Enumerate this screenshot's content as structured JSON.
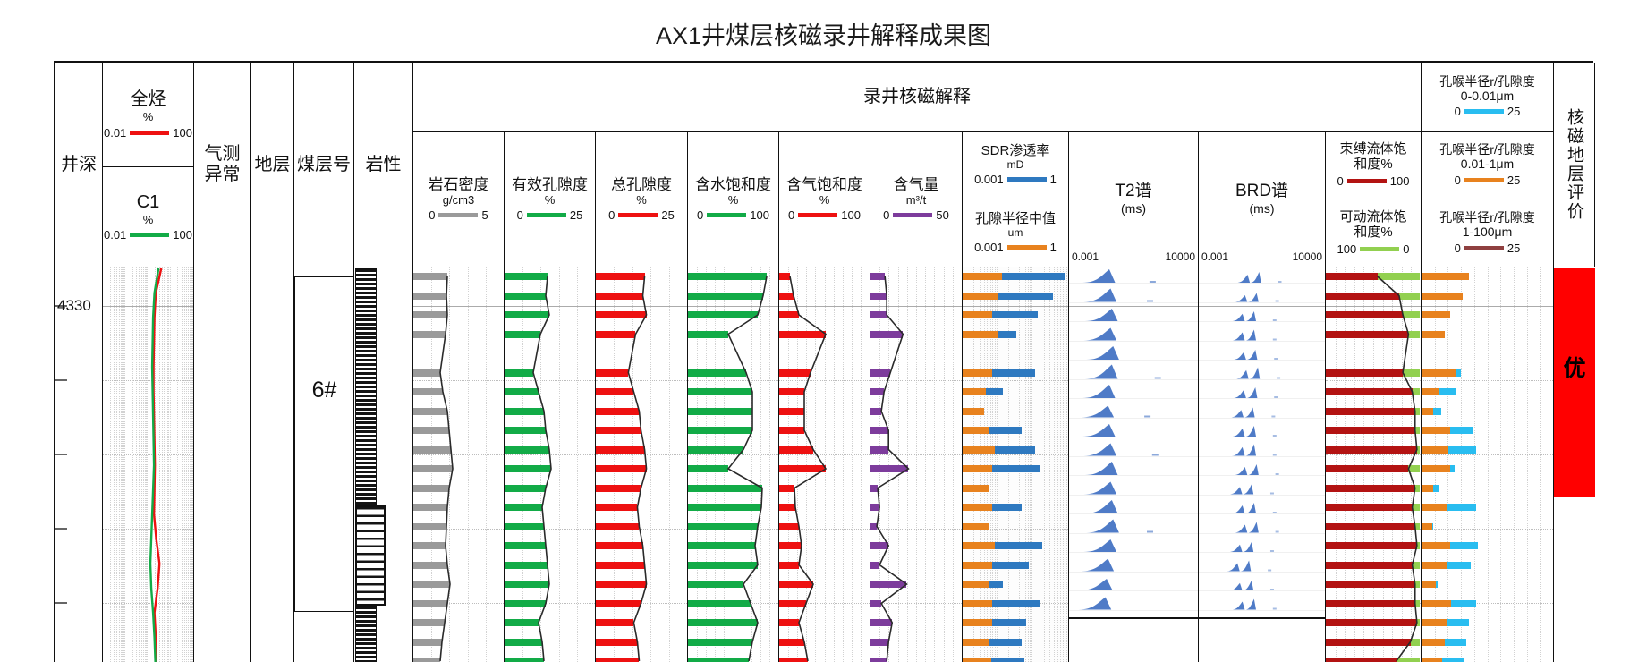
{
  "title": "AX1井煤层核磁录井解释成果图",
  "colors": {
    "green": "#12ab47",
    "red": "#ee1111",
    "gray": "#9a9a9a",
    "purple": "#7d3c9c",
    "orange": "#e8821e",
    "blue": "#2e79c0",
    "cyan": "#29bdf0",
    "dark_red": "#b31312",
    "light_green": "#92d050",
    "brown": "#8f4040",
    "eval_red": "#ff0000",
    "spectrum_blue": "#4f7bc7"
  },
  "header": {
    "depth_label": "井深",
    "gas_total": {
      "title": "全烃",
      "unit": "%",
      "min": "0.01",
      "max": "100"
    },
    "c1": {
      "title": "C1",
      "unit": "%",
      "min": "0.01",
      "max": "100"
    },
    "anomaly_label": "气测\n异常",
    "formation_label": "地层",
    "seam_label_title": "煤层号",
    "lith_label": "岩性",
    "group_label": "录井核磁解释",
    "eval_label": "核磁地层评价"
  },
  "depth_track": {
    "major_label": "4330"
  },
  "seam_label": "6#",
  "evaluation": {
    "grade": "优"
  },
  "chart_data": {
    "type": "well-log",
    "title": "AX1井煤层核磁录井解释成果图",
    "depth_reference": {
      "labeled_depth": 4330,
      "coal_seam": "6#",
      "evaluation_grade": "优"
    },
    "row_count": 21,
    "tracks": [
      {
        "id": "density",
        "title": "岩石密度",
        "unit": "g/cm3",
        "min": 0,
        "max": 5,
        "color_key": "gray",
        "values": [
          1.9,
          1.85,
          1.9,
          1.8,
          null,
          1.5,
          1.65,
          1.9,
          2.0,
          2.1,
          2.2,
          2.0,
          1.9,
          1.85,
          1.8,
          1.9,
          2.05,
          1.9,
          1.75,
          1.6,
          1.5
        ]
      },
      {
        "id": "eff_por",
        "title": "有效孔隙度",
        "unit": "%",
        "min": 0,
        "max": 25,
        "color_key": "green",
        "values": [
          12,
          11.5,
          12.5,
          10,
          null,
          8,
          9.5,
          11,
          11.5,
          12.5,
          13,
          11.5,
          10.5,
          11,
          11.5,
          12,
          12.5,
          11.5,
          9.5,
          10.5,
          11
        ]
      },
      {
        "id": "tot_por",
        "title": "总孔隙度",
        "unit": "%",
        "min": 0,
        "max": 25,
        "color_key": "red",
        "values": [
          13.5,
          13,
          14,
          11,
          null,
          9,
          10.5,
          12,
          12.5,
          13.5,
          14,
          12.5,
          11.5,
          12,
          13,
          13.5,
          14,
          12.5,
          10.5,
          11.5,
          12
        ]
      },
      {
        "id": "sw",
        "title": "含水饱和度",
        "unit": "%",
        "min": 0,
        "max": 100,
        "color_key": "green",
        "values": [
          88,
          84,
          78,
          45,
          null,
          65,
          72,
          72,
          72,
          62,
          45,
          83,
          82,
          78,
          75,
          78,
          62,
          70,
          78,
          72,
          68
        ]
      },
      {
        "id": "sg",
        "title": "含气饱和度",
        "unit": "%",
        "min": 0,
        "max": 100,
        "color_key": "red",
        "values": [
          12,
          16,
          22,
          52,
          null,
          35,
          28,
          28,
          28,
          38,
          52,
          17,
          18,
          22,
          25,
          22,
          38,
          30,
          22,
          28,
          32
        ]
      },
      {
        "id": "gas_content",
        "title": "含气量",
        "unit": "m³/t",
        "min": 0,
        "max": 50,
        "color_key": "purple",
        "values": [
          8,
          9,
          9,
          18,
          null,
          11,
          7.5,
          6,
          10,
          10,
          21,
          4,
          5,
          3.5,
          10,
          5,
          20,
          6,
          12,
          10,
          9
        ]
      },
      {
        "id": "sdr_perm",
        "title": "SDR渗透率",
        "unit": "mD",
        "min": 0.001,
        "max": 1,
        "log": true,
        "color_key": "blue",
        "values": [
          0.8,
          0.35,
          0.13,
          0.032,
          null,
          0.11,
          0.014,
          null,
          0.045,
          0.11,
          0.145,
          null,
          0.045,
          null,
          0.18,
          0.072,
          0.014,
          0.145,
          0.063,
          0.045,
          0.055
        ]
      },
      {
        "id": "median_radius",
        "title": "孔隙半径中值",
        "unit": "um",
        "min": 0.001,
        "max": 1,
        "log": true,
        "color_key": "orange",
        "values": [
          0.013,
          0.01,
          0.0069,
          0.01,
          null,
          0.0069,
          0.0046,
          0.004,
          0.0056,
          0.0079,
          0.0069,
          0.0056,
          0.0069,
          0.0056,
          0.0079,
          0.0069,
          0.0056,
          0.0069,
          0.0069,
          0.0056,
          0.0064
        ]
      },
      {
        "id": "t2",
        "title": "T2谱",
        "unit": "(ms)",
        "min": 0.001,
        "max": 10000,
        "log": true,
        "color_key": "spectrum_blue",
        "peaks": [
          {
            "x": 0.31,
            "h": 15,
            "t": 0.62
          },
          {
            "x": 0.32,
            "h": 15,
            "t": 0.6
          },
          {
            "x": 0.33,
            "h": 14
          },
          {
            "x": 0.32,
            "h": 14
          },
          {
            "x": 0.34,
            "h": 15
          },
          {
            "x": 0.33,
            "h": 16,
            "t": 0.66
          },
          {
            "x": 0.31,
            "h": 15
          },
          {
            "x": 0.3,
            "h": 13,
            "t": 0.58
          },
          {
            "x": 0.31,
            "h": 14
          },
          {
            "x": 0.32,
            "h": 14,
            "t": 0.64
          },
          {
            "x": 0.33,
            "h": 15
          },
          {
            "x": 0.32,
            "h": 14
          },
          {
            "x": 0.33,
            "h": 15
          },
          {
            "x": 0.34,
            "h": 15,
            "t": 0.6
          },
          {
            "x": 0.32,
            "h": 14
          },
          {
            "x": 0.3,
            "h": 14
          },
          {
            "x": 0.29,
            "h": 13
          },
          {
            "x": 0.28,
            "h": 14
          }
        ]
      },
      {
        "id": "brd",
        "title": "BRD谱",
        "unit": "(ms)",
        "min": 0.001,
        "max": 10000,
        "log": true,
        "color_key": "spectrum_blue",
        "peaks": [
          {
            "x": 0.44,
            "h": 12
          },
          {
            "x": 0.42,
            "h": 10
          },
          {
            "x": 0.4,
            "h": 11
          },
          {
            "x": 0.4,
            "h": 12
          },
          {
            "x": 0.41,
            "h": 11
          },
          {
            "x": 0.43,
            "h": 13
          },
          {
            "x": 0.41,
            "h": 12
          },
          {
            "x": 0.39,
            "h": 11
          },
          {
            "x": 0.4,
            "h": 12
          },
          {
            "x": 0.4,
            "h": 13
          },
          {
            "x": 0.42,
            "h": 12
          },
          {
            "x": 0.38,
            "h": 11
          },
          {
            "x": 0.4,
            "h": 12
          },
          {
            "x": 0.42,
            "h": 12
          },
          {
            "x": 0.38,
            "h": 11
          },
          {
            "x": 0.36,
            "h": 12
          },
          {
            "x": 0.38,
            "h": 11
          },
          {
            "x": 0.4,
            "h": 12
          }
        ]
      },
      {
        "id": "bound_fluid",
        "title": "束缚流体饱和度%",
        "min": 0,
        "max": 100,
        "color_key": "dark_red",
        "values": [
          55,
          78,
          82,
          88,
          null,
          82,
          92,
          95,
          95,
          97,
          88,
          95,
          92,
          95,
          97,
          92,
          95,
          95,
          97,
          90,
          75
        ]
      },
      {
        "id": "movable_fluid",
        "title": "可动流体饱和度%",
        "min": 100,
        "max": 0,
        "color_key": "light_green",
        "values": [
          45,
          22,
          18,
          12,
          null,
          18,
          8,
          5,
          5,
          3,
          12,
          5,
          8,
          5,
          3,
          8,
          5,
          5,
          3,
          10,
          25
        ]
      },
      {
        "id": "pore_throat_0_0.01um",
        "title": "孔喉半径r/孔隙度",
        "range_label": "0-0.01μm",
        "min": 0,
        "max": 25,
        "color_key": "cyan",
        "values": [
          5,
          5,
          3,
          2.5,
          null,
          7.5,
          6.5,
          3.8,
          10,
          10.5,
          6.3,
          3.5,
          10.5,
          2.2,
          10.8,
          9.5,
          3,
          10.5,
          9,
          8.5,
          8
        ]
      },
      {
        "id": "pore_throat_0.01-1um",
        "title": "孔喉半径r/孔隙度",
        "range_label": "0.01-1μm",
        "min": 0,
        "max": 25,
        "color_key": "orange",
        "values": [
          9,
          7.8,
          5.5,
          4.5,
          null,
          6.5,
          3.5,
          2.2,
          5.5,
          5.2,
          5.5,
          2.2,
          5,
          2,
          5.5,
          4.8,
          2.8,
          5.6,
          5,
          4.5,
          4
        ]
      },
      {
        "id": "pore_throat_1-100um",
        "title": "孔喉半径r/孔隙度",
        "range_label": "1-100μm",
        "min": 0,
        "max": 25,
        "color_key": "brown",
        "values": [
          0.5,
          0.4,
          0.3,
          0.2,
          null,
          0.3,
          0.2,
          0.1,
          0.3,
          0.3,
          0.3,
          0.1,
          0.3,
          0.1,
          0.3,
          0.3,
          0.1,
          0.3,
          0.3,
          0.2,
          0.2
        ]
      }
    ],
    "gas_curves": {
      "scale": {
        "min": 0.01,
        "max": 100,
        "log": true
      },
      "total_hc_fractions": [
        0.64,
        0.58,
        0.565,
        0.56,
        0.555,
        0.555,
        0.56,
        0.565,
        0.57,
        0.565,
        0.56,
        0.585,
        0.62,
        0.6,
        0.565,
        0.58,
        0.585
      ],
      "c1_fractions": [
        0.61,
        0.565,
        0.55,
        0.545,
        0.54,
        0.545,
        0.55,
        0.555,
        0.56,
        0.55,
        0.54,
        0.53,
        0.52,
        0.53,
        0.55,
        0.565,
        0.575
      ]
    },
    "t2_axis_labels": {
      "min": "0.001",
      "max": "10000"
    }
  }
}
